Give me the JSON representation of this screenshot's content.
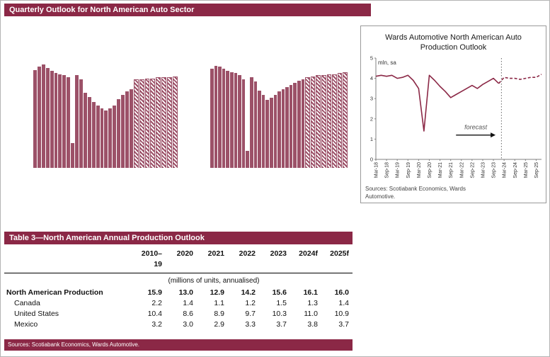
{
  "colors": {
    "maroon": "#8B2846",
    "bar": "#9C5168"
  },
  "header": {
    "title": "Quarterly Outlook for North American Auto Sector"
  },
  "chart_data": [
    {
      "type": "bar",
      "name": "quarterly-auto-bars-left",
      "ylim": [
        0,
        5
      ],
      "forecast_start_index": 24,
      "values": [
        4.55,
        4.7,
        4.8,
        4.65,
        4.5,
        4.4,
        4.35,
        4.3,
        4.2,
        1.15,
        4.3,
        4.1,
        3.5,
        3.3,
        3.05,
        2.9,
        2.75,
        2.65,
        2.75,
        2.9,
        3.2,
        3.4,
        3.55,
        3.65,
        4.1,
        4.1,
        4.15,
        4.15,
        4.2,
        4.2,
        4.2,
        4.25
      ],
      "note": "solid bars = history, hatched bars = forecast; no axis labels visible"
    },
    {
      "type": "bar",
      "name": "quarterly-auto-bars-right",
      "ylim": [
        0,
        5
      ],
      "forecast_start_index": 24,
      "values": [
        4.6,
        4.75,
        4.7,
        4.6,
        4.5,
        4.45,
        4.4,
        4.3,
        4.1,
        0.8,
        4.2,
        4.0,
        3.6,
        3.4,
        3.15,
        3.25,
        3.4,
        3.55,
        3.65,
        3.75,
        3.85,
        3.95,
        4.05,
        4.1,
        4.2,
        4.25,
        4.3,
        4.3,
        4.35,
        4.35,
        4.4,
        4.45
      ],
      "note": "solid bars = history, hatched bars = forecast; no axis labels visible"
    },
    {
      "type": "line",
      "title": "Wards Automotive North American Auto Production Outlook",
      "ylabel": "mln, sa",
      "ylim": [
        0,
        5
      ],
      "y_ticks": [
        0,
        1,
        2,
        3,
        4,
        5
      ],
      "x_labels": [
        "Mar-18",
        "Sep-18",
        "Mar-19",
        "Sep-19",
        "Mar-20",
        "Sep-20",
        "Mar-21",
        "Sep-21",
        "Mar-22",
        "Sep-22",
        "Mar-23",
        "Sep-23",
        "Mar-24",
        "Sep-24",
        "Mar-25",
        "Sep-25"
      ],
      "values": [
        4.1,
        4.15,
        4.1,
        4.15,
        4.0,
        4.05,
        4.15,
        3.9,
        3.5,
        1.4,
        4.15,
        3.9,
        3.6,
        3.35,
        3.05,
        3.2,
        3.35,
        3.5,
        3.65,
        3.5,
        3.7,
        3.85,
        4.0,
        3.75,
        4.05,
        4.0,
        4.0,
        3.95,
        4.0,
        4.05,
        4.05,
        4.2
      ],
      "forecast_start_index": 24,
      "forecast_label": "forecast",
      "legend_position": "none",
      "grid": false,
      "sources": "Sources: Scotiabank Economics, Wards Automotive."
    }
  ],
  "table": {
    "title": "Table 3—North American Annual Production Outlook",
    "columns": [
      "2010–19",
      "2020",
      "2021",
      "2022",
      "2023",
      "2024f",
      "2025f"
    ],
    "units_note": "(millions of units, annualised)",
    "rows": [
      {
        "label": "North American Production",
        "cells": [
          "15.9",
          "13.0",
          "12.9",
          "14.2",
          "15.6",
          "16.1",
          "16.0"
        ]
      },
      {
        "label": "Canada",
        "cells": [
          "2.2",
          "1.4",
          "1.1",
          "1.2",
          "1.5",
          "1.3",
          "1.4"
        ]
      },
      {
        "label": "United States",
        "cells": [
          "10.4",
          "8.6",
          "8.9",
          "9.7",
          "10.3",
          "11.0",
          "10.9"
        ]
      },
      {
        "label": "Mexico",
        "cells": [
          "3.2",
          "3.0",
          "2.9",
          "3.3",
          "3.7",
          "3.8",
          "3.7"
        ]
      }
    ],
    "sources": "Sources: Scotiabank Economics, Wards Automotive."
  }
}
